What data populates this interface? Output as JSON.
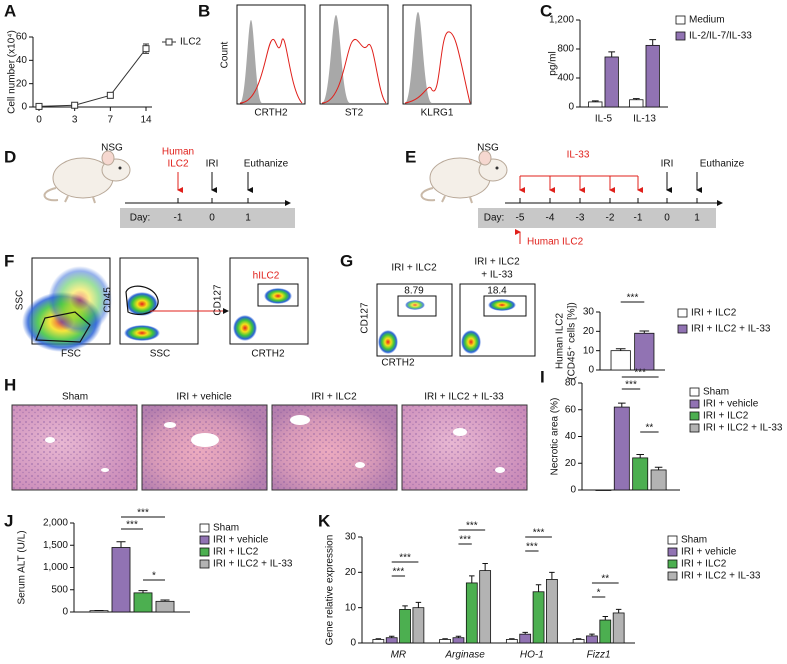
{
  "panel_labels": [
    "A",
    "B",
    "C",
    "D",
    "E",
    "F",
    "G",
    "H",
    "I",
    "J",
    "K"
  ],
  "chart_data": [
    {
      "type": "line",
      "ylabel": "Cell number (x10⁴)",
      "categories": [
        "0",
        "3",
        "7",
        "14"
      ],
      "ylim": [
        0,
        60
      ],
      "yticks": [
        0,
        20,
        40,
        60
      ],
      "series": [
        {
          "name": "ILC2",
          "color": "#333333",
          "values": [
            0.5,
            1.5,
            10,
            50
          ],
          "errors": [
            0.5,
            0.5,
            1,
            4
          ]
        }
      ]
    },
    {
      "type": "bar",
      "ylabel": "pg/ml",
      "categories": [
        "IL-5",
        "IL-13"
      ],
      "ylim": [
        0,
        1200
      ],
      "yticks": [
        0,
        400,
        800,
        {
          "value": 1200,
          "label": "1,200"
        }
      ],
      "series": [
        {
          "name": "Medium",
          "color": "#ffffff",
          "values": [
            70,
            100
          ],
          "errors": [
            15,
            15
          ]
        },
        {
          "name": "IL-2/IL-7/IL-33",
          "color": "#9173b3",
          "values": [
            690,
            850
          ],
          "errors": [
            70,
            80
          ]
        }
      ]
    },
    {
      "type": "bar",
      "ylabel": [
        "Human ILC2",
        "(CD45⁺ cells [%])"
      ],
      "categories": [
        null
      ],
      "ylim": [
        0,
        30
      ],
      "yticks": [
        0,
        10,
        20,
        30
      ],
      "annotations": [
        "***"
      ],
      "series": [
        {
          "name": "IRI + ILC2",
          "color": "#ffffff",
          "values": [
            10
          ],
          "errors": [
            1
          ]
        },
        {
          "name": "IRI + ILC2 + IL-33",
          "color": "#9173b3",
          "values": [
            19
          ],
          "errors": [
            1.2
          ]
        }
      ]
    },
    {
      "type": "bar",
      "ylabel": "Necrotic area (%)",
      "categories": [
        null
      ],
      "ylim": [
        0,
        80
      ],
      "yticks": [
        0,
        20,
        40,
        60,
        80
      ],
      "annotations": [
        "***",
        "***",
        "**"
      ],
      "series": [
        {
          "name": "Sham",
          "color": "#ffffff",
          "values": [
            0
          ],
          "errors": [
            0
          ]
        },
        {
          "name": "IRI + vehicle",
          "color": "#9173b3",
          "values": [
            62
          ],
          "errors": [
            3
          ]
        },
        {
          "name": "IRI + ILC2",
          "color": "#4caf50",
          "values": [
            24
          ],
          "errors": [
            2.5
          ]
        },
        {
          "name": "IRI + ILC2 + IL-33",
          "color": "#b3b3b3",
          "values": [
            15
          ],
          "errors": [
            2
          ]
        }
      ]
    },
    {
      "type": "bar",
      "ylabel": "Serum ALT (U/L)",
      "categories": [
        null
      ],
      "ylim": [
        0,
        2000
      ],
      "yticks": [
        0,
        500,
        {
          "value": 1000,
          "label": "1,000"
        },
        {
          "value": 1500,
          "label": "1,500"
        },
        {
          "value": 2000,
          "label": "2,000"
        }
      ],
      "annotations": [
        "***",
        "***",
        "*"
      ],
      "series": [
        {
          "name": "Sham",
          "color": "#ffffff",
          "values": [
            30
          ],
          "errors": [
            5
          ]
        },
        {
          "name": "IRI + vehicle",
          "color": "#9173b3",
          "values": [
            1450
          ],
          "errors": [
            130
          ]
        },
        {
          "name": "IRI + ILC2",
          "color": "#4caf50",
          "values": [
            430
          ],
          "errors": [
            50
          ]
        },
        {
          "name": "IRI + ILC2 + IL-33",
          "color": "#b3b3b3",
          "values": [
            240
          ],
          "errors": [
            30
          ]
        }
      ]
    },
    {
      "type": "bar",
      "ylabel": "Gene relative expression",
      "categories": [
        "MR",
        "Arginase",
        "HO-1",
        "Fizz1"
      ],
      "category_style": "italic",
      "ylim": [
        0,
        30
      ],
      "yticks": [
        0,
        10,
        20,
        30
      ],
      "annotations": [
        "***",
        "***",
        "***",
        "***",
        "***",
        "***",
        "**",
        "*"
      ],
      "series": [
        {
          "name": "Sham",
          "color": "#ffffff",
          "values": [
            1,
            1,
            1,
            1
          ],
          "errors": [
            0.2,
            0.2,
            0.2,
            0.2
          ]
        },
        {
          "name": "IRI + vehicle",
          "color": "#9173b3",
          "values": [
            1.5,
            1.5,
            2.5,
            2
          ],
          "errors": [
            0.4,
            0.4,
            0.5,
            0.5
          ]
        },
        {
          "name": "IRI + ILC2",
          "color": "#4caf50",
          "values": [
            9.5,
            17,
            14.5,
            6.5
          ],
          "errors": [
            1,
            2,
            2,
            1
          ]
        },
        {
          "name": "IRI + ILC2 + IL-33",
          "color": "#b3b3b3",
          "values": [
            10,
            20.5,
            18,
            8.5
          ],
          "errors": [
            1.5,
            2,
            2,
            1
          ]
        }
      ]
    }
  ],
  "histograms": {
    "ylabel": "Count",
    "xlabels": [
      "CRTH2",
      "ST2",
      "KLRG1"
    ]
  },
  "schematic_d": {
    "mouse": "NSG",
    "treatment": [
      "Human",
      "ILC2"
    ],
    "steps": [
      "IRI",
      "Euthanize"
    ],
    "day_label": "Day:",
    "days": [
      "-1",
      "0",
      "1"
    ]
  },
  "schematic_e": {
    "mouse": "NSG",
    "treatment": "IL-33",
    "steps": [
      "IRI",
      "Euthanize"
    ],
    "day_label": "Day:",
    "days": [
      "-5",
      "-4",
      "-3",
      "-2",
      "-1",
      "0",
      "1"
    ],
    "cell": "Human ILC2"
  },
  "flow_f": {
    "plots": [
      {
        "x": "FSC",
        "y": "SSC"
      },
      {
        "x": "SSC",
        "y": "CD45"
      },
      {
        "x": "CRTH2",
        "y": "CD127",
        "gate": "hILC2"
      }
    ]
  },
  "flow_g": {
    "x": "CRTH2",
    "y": "CD127",
    "groups": [
      {
        "title": [
          "IRI + ILC2"
        ],
        "gate": "8.79"
      },
      {
        "title": [
          "IRI + ILC2",
          "+ IL-33"
        ],
        "gate": "18.4"
      }
    ]
  },
  "histology": {
    "groups": [
      "Sham",
      "IRI + vehicle",
      "IRI + ILC2",
      "IRI + ILC2 + IL-33"
    ]
  }
}
